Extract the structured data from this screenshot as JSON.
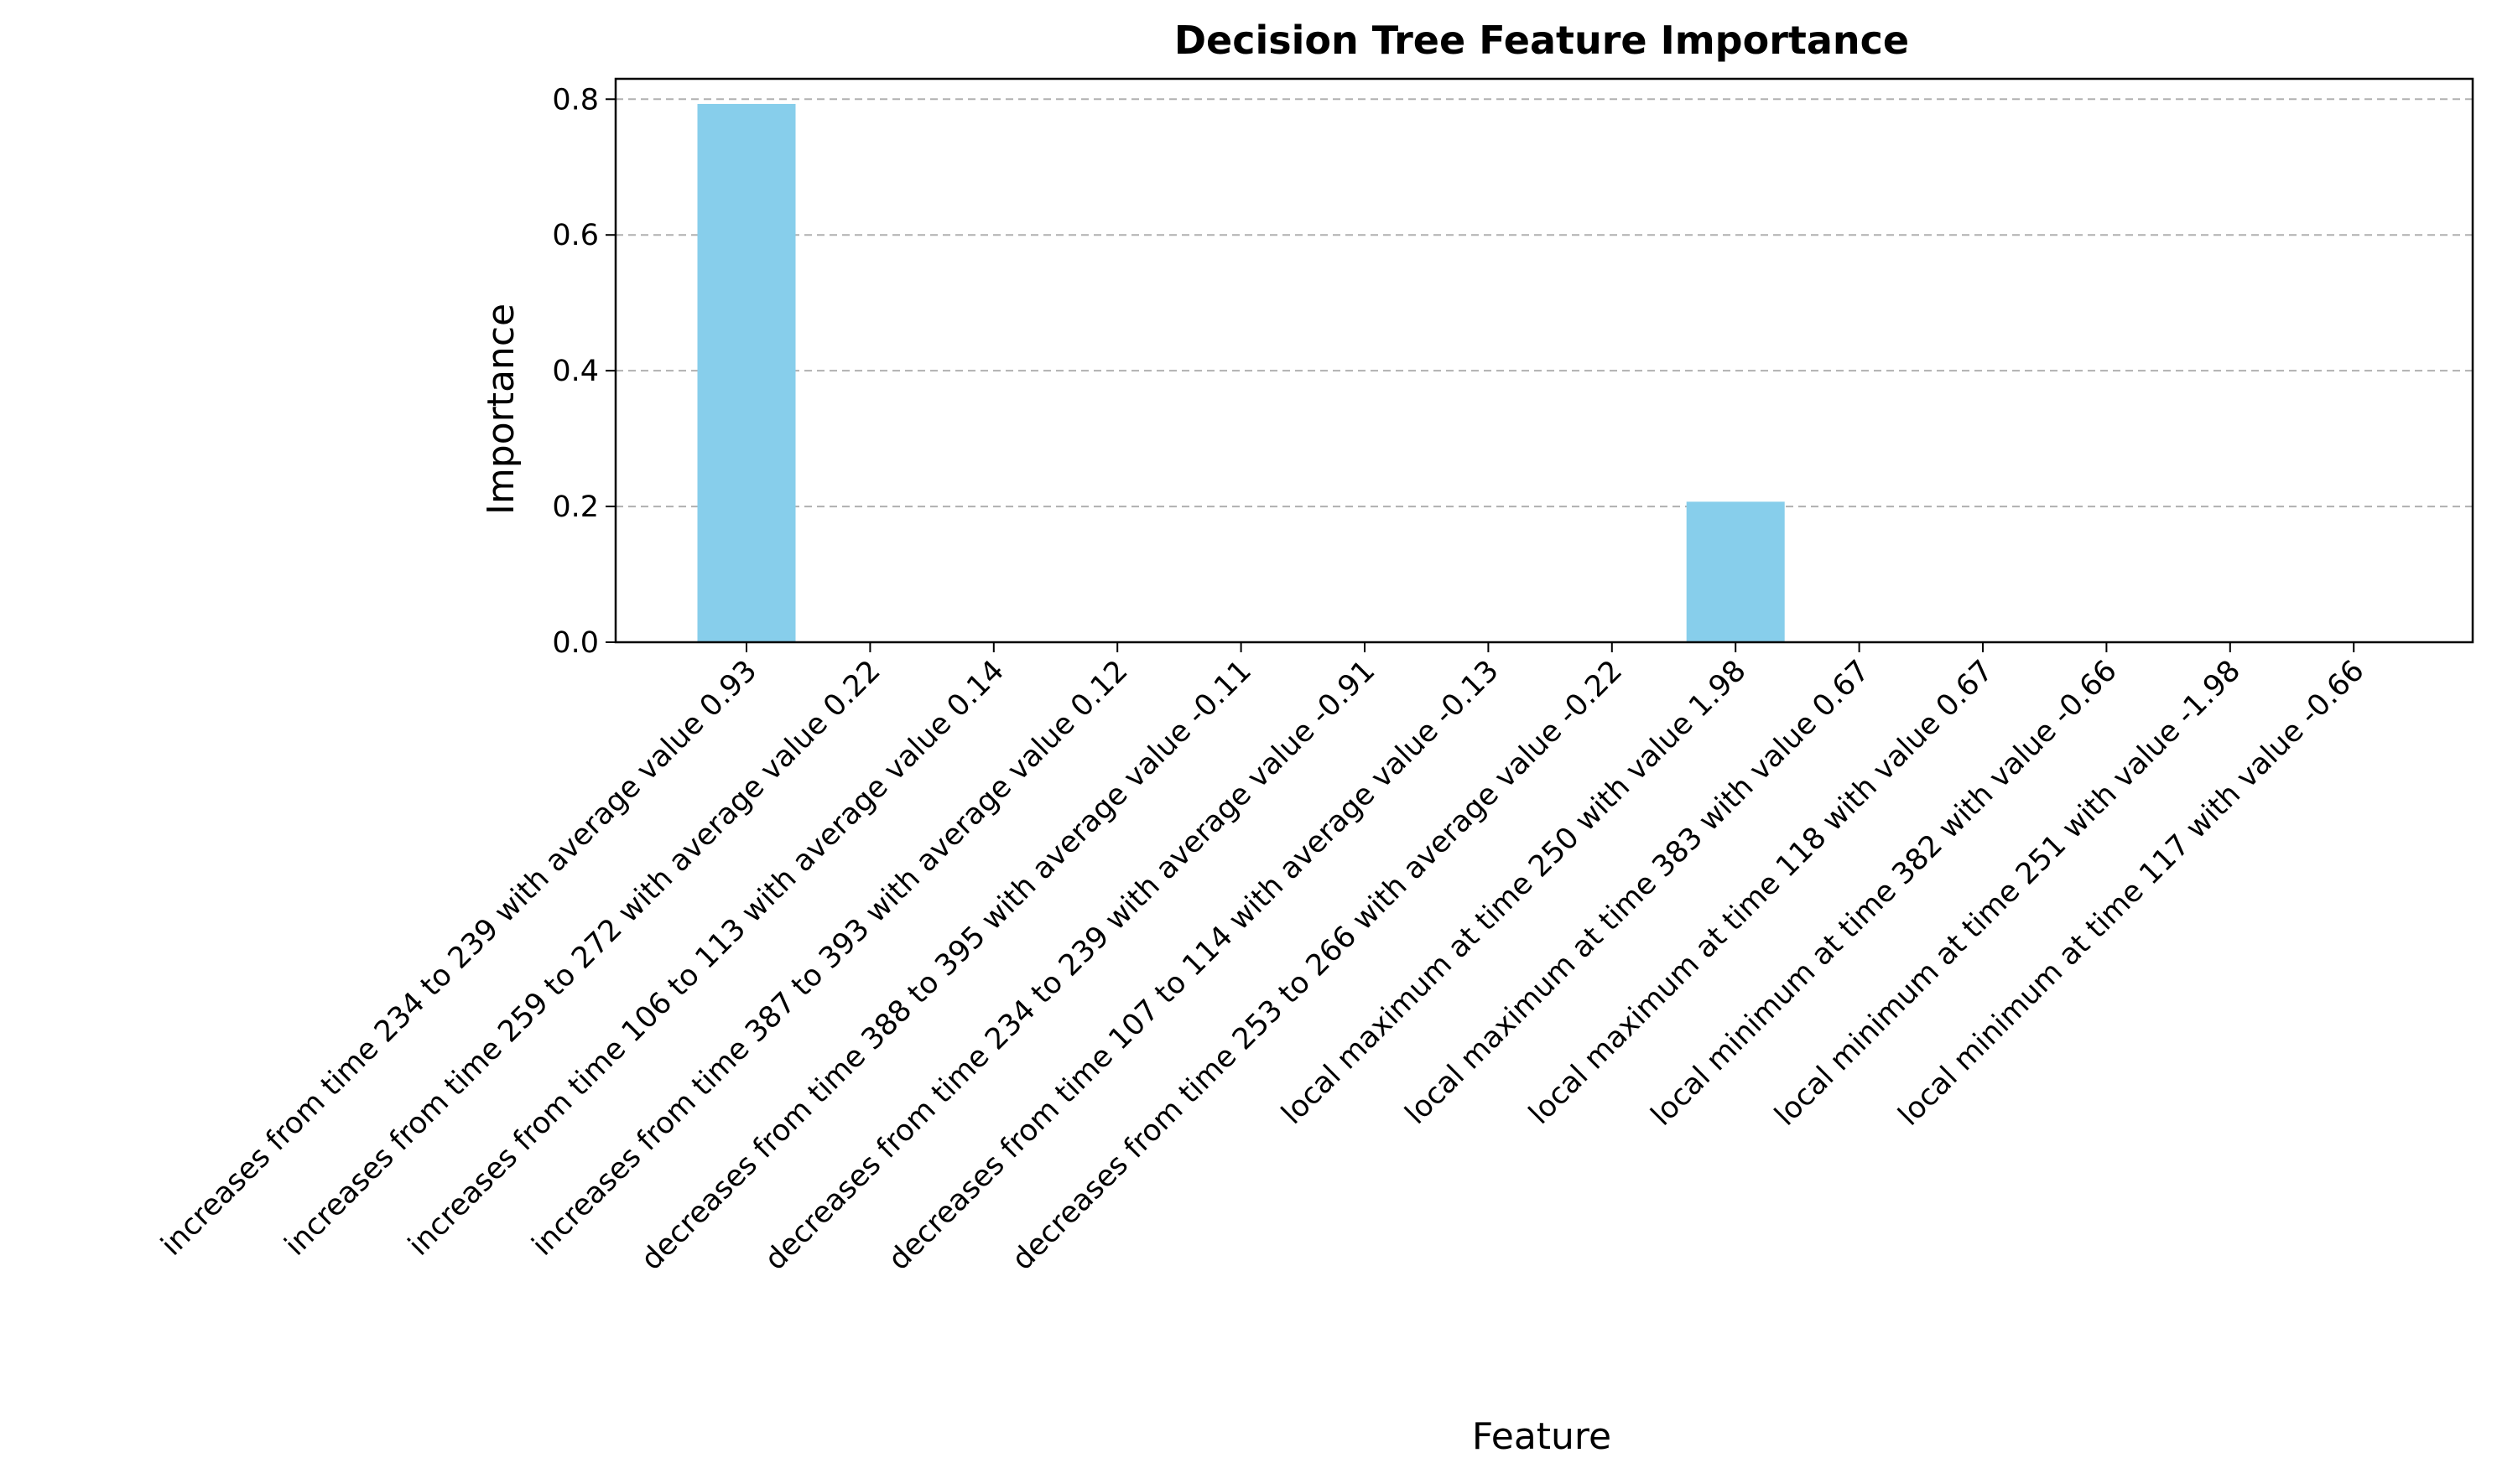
{
  "chart_data": {
    "type": "bar",
    "title": "Decision Tree Feature Importance",
    "xlabel": "Feature",
    "ylabel": "Importance",
    "ylim": [
      0,
      0.83
    ],
    "yticks": [
      0.0,
      0.2,
      0.4,
      0.6,
      0.8
    ],
    "ytick_labels": [
      "0.0",
      "0.2",
      "0.4",
      "0.6",
      "0.8"
    ],
    "grid": "y-dashed",
    "bar_color": "#87CEEB",
    "categories": [
      "increases from time 234 to 239 with average value 0.93",
      "increases from time 259 to 272 with average value 0.22",
      "increases from time 106 to 113 with average value 0.14",
      "increases from time 387 to 393 with average value 0.12",
      "decreases from time 388 to 395 with average value -0.11",
      "decreases from time 234 to 239 with average value -0.91",
      "decreases from time 107 to 114 with average value -0.13",
      "decreases from time 253 to 266 with average value -0.22",
      "local maximum at time 250 with value 1.98",
      "local maximum at time 383 with value 0.67",
      "local maximum at time 118 with value 0.67",
      "local minimum at time 382 with value -0.66",
      "local minimum at time 251 with value -1.98",
      "local minimum at time 117 with value -0.66"
    ],
    "values": [
      0.793,
      0,
      0,
      0,
      0,
      0,
      0,
      0,
      0.207,
      0,
      0,
      0,
      0,
      0
    ]
  }
}
